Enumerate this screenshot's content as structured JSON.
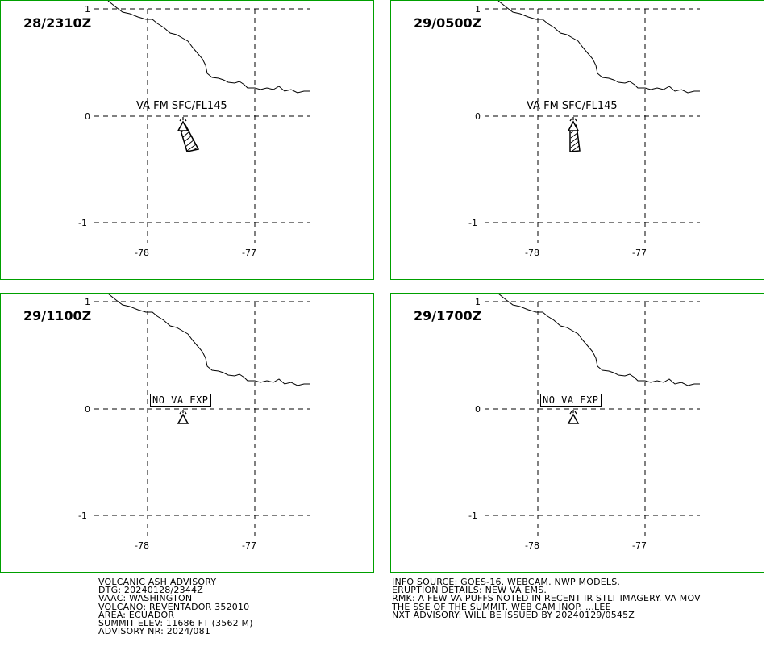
{
  "colors": {
    "border": "#00a000",
    "lines": "#000000"
  },
  "panels": [
    {
      "time": "28/2310Z",
      "label": "VA FM SFC/FL145",
      "no_va": false,
      "lat_ticks": [
        "1",
        "0",
        "-1"
      ],
      "lon_ticks": [
        "-78",
        "-77"
      ]
    },
    {
      "time": "29/0500Z",
      "label": "VA FM SFC/FL145",
      "no_va": false,
      "lat_ticks": [
        "1",
        "0",
        "-1"
      ],
      "lon_ticks": [
        "-78",
        "-77"
      ]
    },
    {
      "time": "29/1100Z",
      "label": "NO VA EXP",
      "no_va": true,
      "lat_ticks": [
        "1",
        "0",
        "-1"
      ],
      "lon_ticks": [
        "-78",
        "-77"
      ]
    },
    {
      "time": "29/1700Z",
      "label": "NO VA EXP",
      "no_va": true,
      "lat_ticks": [
        "1",
        "0",
        "-1"
      ],
      "lon_ticks": [
        "-78",
        "-77"
      ]
    }
  ],
  "advisory": {
    "left": [
      "VOLCANIC ASH ADVISORY",
      "DTG: 20240128/2344Z",
      "VAAC: WASHINGTON",
      "VOLCANO: REVENTADOR 352010",
      "AREA: ECUADOR",
      "SUMMIT ELEV: 11686 FT (3562 M)",
      "ADVISORY NR: 2024/081"
    ],
    "right": [
      "INFO SOURCE: GOES-16. WEBCAM. NWP MODELS.",
      "ERUPTION DETAILS: NEW VA EMS.",
      "RMK: A FEW VA PUFFS NOTED IN RECENT IR STLT IMAGERY. VA MOV",
      "THE SSE OF THE SUMMIT. WEB CAM INOP. ...LEE",
      "NXT ADVISORY: WILL BE ISSUED BY 20240129/0545Z"
    ]
  }
}
